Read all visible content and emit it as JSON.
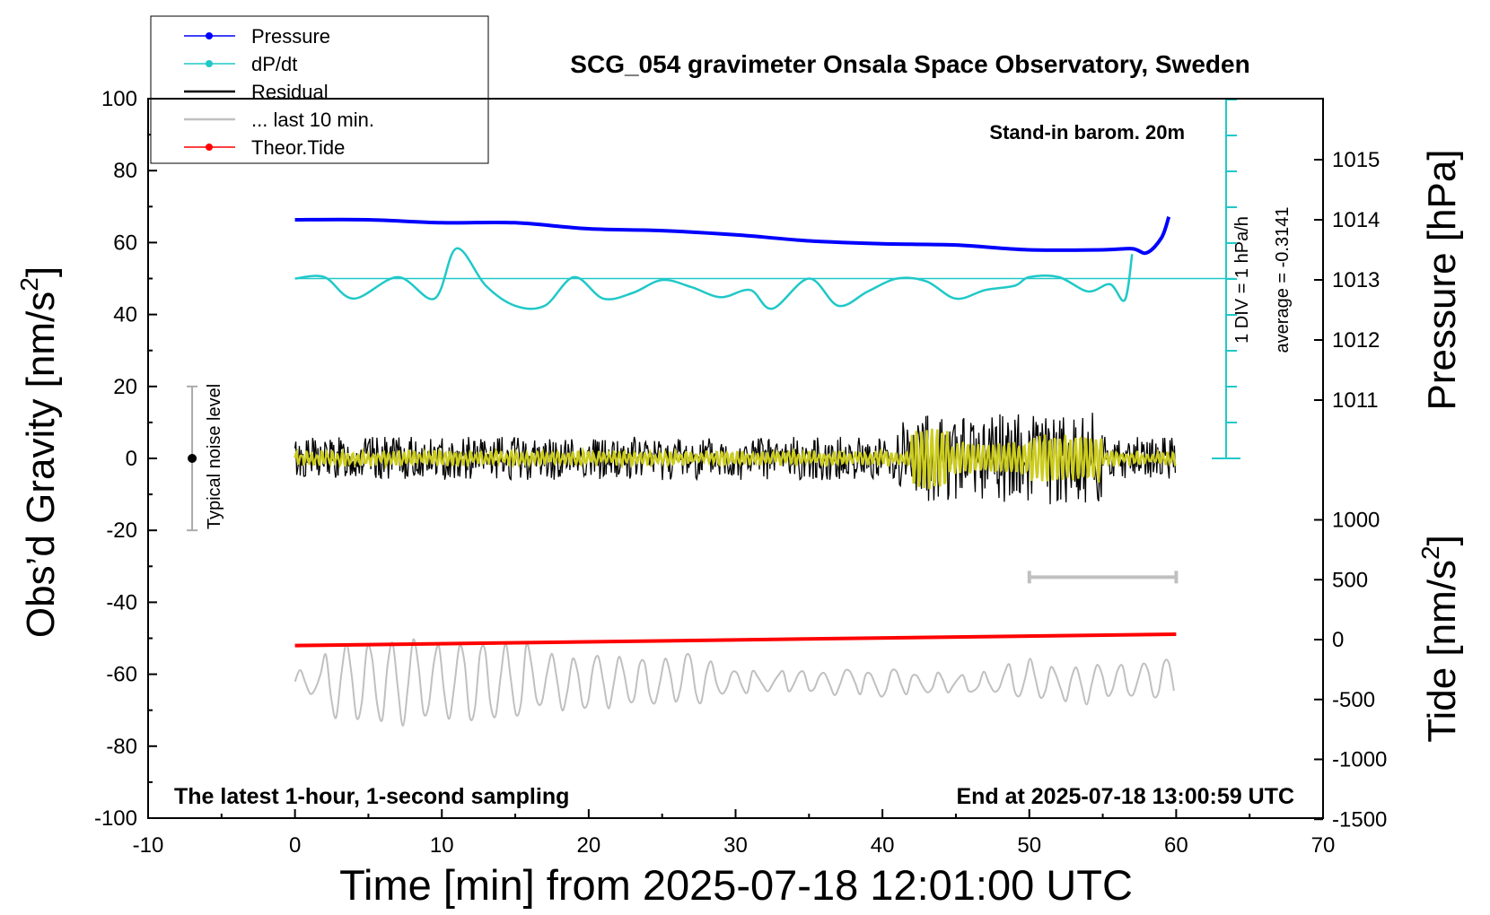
{
  "chart_data": {
    "type": "line",
    "title": "SCG_054 gravimeter Onsala Space Observatory, Sweden",
    "xlabel": "Time [min] from 2025-07-18 12:01:00 UTC",
    "ylabel_left": "Obs’d Gravity [nm/s",
    "ylabel_left_sup": "2",
    "ylabel_left_end": "]",
    "ylabel_right_pressure": "Pressure [hPa]",
    "ylabel_right_tide": "Tide [nm/s",
    "ylabel_right_tide_sup": "2",
    "ylabel_right_tide_end": "]",
    "xlim": [
      -10,
      70
    ],
    "ylim": [
      -100,
      100
    ],
    "x_ticks": [
      "-10",
      "0",
      "10",
      "20",
      "30",
      "40",
      "50",
      "60",
      "70"
    ],
    "y_ticks": [
      "100",
      "80",
      "60",
      "40",
      "20",
      "0",
      "-20",
      "-40",
      "-60",
      "-80",
      "-100"
    ],
    "pressure_ticks": [
      "1015",
      "1014",
      "1013",
      "1012",
      "1011"
    ],
    "tide_ticks": [
      "1000",
      "500",
      "0",
      "-500",
      "-1000",
      "-1500"
    ],
    "legend": [
      "Pressure",
      "dP/dt",
      "Residual",
      "... last 10 min.",
      "Theor.Tide"
    ],
    "annotations": {
      "barometer": "Stand-in barom. 20m",
      "dpdt_scale": "1 DIV = 1 hPa/h",
      "dpdt_average": "average = -0.3141",
      "noise": "Typical noise level",
      "bottom_left": "The latest 1-hour, 1-second sampling",
      "bottom_right": "End at 2025-07-18 13:00:59 UTC"
    },
    "series": [
      {
        "name": "Pressure",
        "color": "#0000ff",
        "unit": "hPa",
        "x": [
          0,
          5,
          10,
          15,
          20,
          25,
          30,
          35,
          40,
          45,
          50,
          55,
          57,
          58,
          59,
          59.5
        ],
        "values": [
          1014.0,
          1014.0,
          1013.95,
          1013.95,
          1013.85,
          1013.82,
          1013.75,
          1013.65,
          1013.6,
          1013.58,
          1013.5,
          1013.5,
          1013.52,
          1013.45,
          1013.7,
          1014.05
        ]
      },
      {
        "name": "dP/dt",
        "color": "#20c8c8",
        "unit": "div (0 at y=50)",
        "x": [
          0,
          2,
          4,
          7,
          9.5,
          11,
          13,
          15,
          17,
          19,
          21,
          23,
          25,
          27,
          29,
          31,
          32.5,
          35,
          37,
          39,
          41,
          43,
          45,
          47,
          49,
          50,
          52,
          54,
          55.5,
          56.5,
          57
        ],
        "values": [
          0.0,
          0.1,
          -1.4,
          0.1,
          -1.4,
          2.1,
          -0.5,
          -1.9,
          -1.9,
          0.1,
          -1.4,
          -1.0,
          -0.1,
          -0.6,
          -1.3,
          -0.8,
          -2.1,
          0.0,
          -1.9,
          -0.9,
          0.0,
          -0.2,
          -1.4,
          -0.8,
          -0.5,
          0.1,
          0.1,
          -0.9,
          -0.4,
          -1.5,
          1.7
        ]
      },
      {
        "name": "Residual",
        "color": "#000000",
        "x_range": [
          0,
          60
        ],
        "y_range": [
          -18,
          14
        ],
        "samples": "1-second"
      },
      {
        "name": "... last 10 min.",
        "color": "#c0c0c0",
        "x_range": [
          0,
          60
        ],
        "y_range": [
          -79,
          -46
        ]
      },
      {
        "name": "Theor.Tide",
        "color": "#ff0000",
        "unit": "nm/s2",
        "x": [
          0,
          60
        ],
        "values": [
          -50,
          45
        ]
      }
    ],
    "noise_bar": {
      "x": -7,
      "center": 0,
      "range": [
        -20,
        20
      ]
    },
    "scale_bar": {
      "x_range": [
        50,
        60
      ],
      "y": -33
    }
  }
}
